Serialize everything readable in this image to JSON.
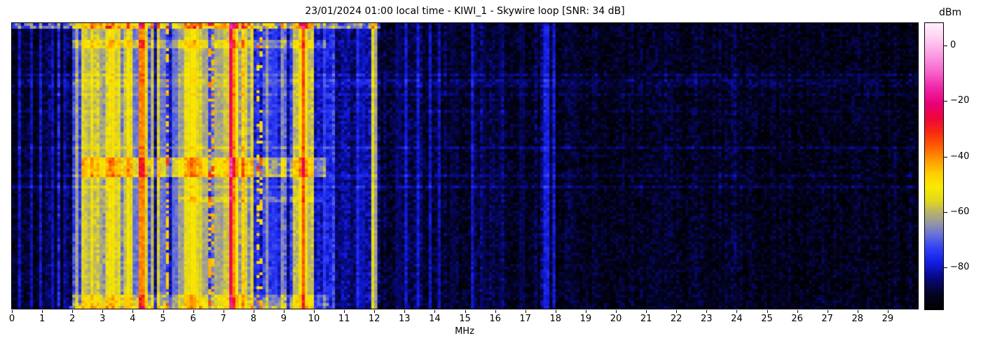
{
  "chart_data": {
    "type": "heatmap",
    "title": "23/01/2024 01:00 local time - KIWI_1 - Skywire loop [SNR: 34 dB]",
    "xlabel": "MHz",
    "x_range": [
      0,
      30
    ],
    "x_ticks": [
      0,
      1,
      2,
      3,
      4,
      5,
      6,
      7,
      8,
      9,
      10,
      11,
      12,
      13,
      14,
      15,
      16,
      17,
      18,
      19,
      20,
      21,
      22,
      23,
      24,
      25,
      26,
      27,
      28,
      29
    ],
    "y_axis": "time (no tick labels shown)",
    "colorbar": {
      "label": "dBm",
      "ticks": [
        0,
        -20,
        -40,
        -60,
        -80
      ],
      "vmin": -95,
      "vmax": 8
    },
    "colormap": [
      [
        -95,
        0,
        0,
        0
      ],
      [
        -89,
        4,
        4,
        40
      ],
      [
        -83,
        8,
        10,
        140
      ],
      [
        -78,
        20,
        30,
        230
      ],
      [
        -73,
        50,
        65,
        245
      ],
      [
        -68,
        105,
        115,
        215
      ],
      [
        -64,
        150,
        150,
        165
      ],
      [
        -60,
        185,
        180,
        105
      ],
      [
        -56,
        225,
        215,
        30
      ],
      [
        -51,
        250,
        235,
        0
      ],
      [
        -46,
        255,
        205,
        0
      ],
      [
        -41,
        255,
        150,
        0
      ],
      [
        -36,
        255,
        90,
        0
      ],
      [
        -31,
        248,
        40,
        20
      ],
      [
        -26,
        238,
        5,
        60
      ],
      [
        -21,
        232,
        0,
        120
      ],
      [
        -15,
        240,
        40,
        170
      ],
      [
        -9,
        248,
        105,
        205
      ],
      [
        -3,
        252,
        160,
        228
      ],
      [
        3,
        254,
        210,
        243
      ],
      [
        8,
        255,
        240,
        252
      ]
    ],
    "render": {
      "cols": 300,
      "rows": 102,
      "seed": 42,
      "cell_var": 4.5
    },
    "bands": [
      [
        0.0,
        2.0,
        -88,
        4,
        0.1,
        7
      ],
      [
        2.0,
        2.3,
        -76,
        6,
        0.3,
        8
      ],
      [
        2.3,
        3.45,
        -67,
        9,
        0.35,
        9
      ],
      [
        3.45,
        4.55,
        -71,
        9,
        0.3,
        9
      ],
      [
        4.55,
        5.55,
        -78,
        6,
        0.15,
        8
      ],
      [
        5.55,
        6.45,
        -68,
        9,
        0.3,
        9
      ],
      [
        6.45,
        7.05,
        -75,
        7,
        0.2,
        8
      ],
      [
        7.05,
        7.75,
        -66,
        9,
        0.3,
        8
      ],
      [
        7.75,
        8.15,
        -71,
        8,
        0.25,
        8
      ],
      [
        8.15,
        9.3,
        -78,
        6,
        0.12,
        7
      ],
      [
        9.3,
        10.05,
        -68,
        9,
        0.3,
        9
      ],
      [
        10.05,
        10.7,
        -80,
        4,
        0.1,
        5
      ],
      [
        10.7,
        11.8,
        -85,
        3,
        0.08,
        4
      ],
      [
        11.8,
        12.2,
        -83,
        3,
        0.1,
        4
      ],
      [
        12.2,
        14.5,
        -88,
        2.5,
        0.06,
        4
      ],
      [
        14.5,
        18.0,
        -89,
        2.5,
        0.05,
        3
      ],
      [
        18.0,
        24.0,
        -90,
        2,
        0.04,
        3
      ],
      [
        24.0,
        30.0,
        -91,
        2,
        0.03,
        2
      ]
    ],
    "carriers": [
      [
        0.25,
        -80,
        1
      ],
      [
        0.62,
        -79,
        1
      ],
      [
        0.95,
        -80,
        1
      ],
      [
        1.35,
        -81,
        1
      ],
      [
        1.72,
        -80,
        1
      ],
      [
        2.12,
        -60,
        1
      ],
      [
        2.38,
        -55,
        2
      ],
      [
        2.52,
        -58,
        1
      ],
      [
        2.65,
        -54,
        2
      ],
      [
        2.82,
        -58,
        1
      ],
      [
        2.95,
        -62,
        1
      ],
      [
        3.2,
        -52,
        1
      ],
      [
        3.3,
        -49,
        2
      ],
      [
        3.42,
        -55,
        1
      ],
      [
        3.58,
        -53,
        1
      ],
      [
        3.72,
        -56,
        1
      ],
      [
        3.88,
        -52,
        2
      ],
      [
        3.98,
        -57,
        1
      ],
      [
        4.1,
        -62,
        1
      ],
      [
        4.3,
        -38,
        2
      ],
      [
        4.47,
        -55,
        1
      ],
      [
        4.65,
        -60,
        1
      ],
      [
        4.85,
        -57,
        1
      ],
      [
        5.0,
        -62,
        1
      ],
      [
        5.17,
        -45,
        1,
        0.5
      ],
      [
        5.4,
        -63,
        1
      ],
      [
        5.6,
        -58,
        1
      ],
      [
        5.75,
        -55,
        1
      ],
      [
        5.88,
        -52,
        1
      ],
      [
        6.0,
        -49,
        2
      ],
      [
        6.12,
        -54,
        1
      ],
      [
        6.25,
        -57,
        1
      ],
      [
        6.4,
        -56,
        1
      ],
      [
        6.6,
        -38,
        1,
        0.35
      ],
      [
        6.8,
        -56,
        1
      ],
      [
        6.92,
        -60,
        1
      ],
      [
        7.1,
        -52,
        1
      ],
      [
        7.22,
        -22,
        1
      ],
      [
        7.32,
        -40,
        2
      ],
      [
        7.48,
        -50,
        1
      ],
      [
        7.62,
        -53,
        1
      ],
      [
        7.78,
        -55,
        1
      ],
      [
        7.95,
        -56,
        1
      ],
      [
        8.2,
        -42,
        1,
        0.3
      ],
      [
        8.47,
        -64,
        1
      ],
      [
        8.7,
        -68,
        1
      ],
      [
        8.92,
        -63,
        1
      ],
      [
        9.4,
        -55,
        1
      ],
      [
        9.52,
        -50,
        1
      ],
      [
        9.62,
        -34,
        1
      ],
      [
        9.78,
        -52,
        1
      ],
      [
        9.9,
        -54,
        1
      ],
      [
        10.35,
        -74,
        1
      ],
      [
        10.6,
        -76,
        1
      ],
      [
        11.0,
        -78,
        1
      ],
      [
        11.45,
        -77,
        1
      ],
      [
        11.6,
        -75,
        1
      ],
      [
        11.92,
        -53,
        1
      ],
      [
        12.03,
        -62,
        1
      ],
      [
        12.8,
        -80,
        1
      ],
      [
        13.05,
        -79,
        1
      ],
      [
        13.42,
        -77,
        1
      ],
      [
        13.82,
        -78,
        1
      ],
      [
        14.12,
        -79,
        1
      ],
      [
        14.6,
        -82,
        1
      ],
      [
        15.25,
        -80,
        1
      ],
      [
        15.6,
        -81,
        1
      ],
      [
        16.2,
        -82,
        1
      ],
      [
        16.9,
        -81,
        1
      ],
      [
        17.7,
        -72,
        1
      ],
      [
        17.95,
        -79,
        1
      ],
      [
        18.6,
        -84,
        1
      ],
      [
        19.3,
        -85,
        1
      ],
      [
        21.5,
        -85,
        1
      ],
      [
        23.0,
        -86,
        1
      ]
    ],
    "hazes": [
      [
        0.0,
        0.012,
        0.0,
        12.2,
        16,
        10
      ],
      [
        0.055,
        0.085,
        2.0,
        10.4,
        8,
        3
      ],
      [
        0.47,
        0.53,
        2.3,
        10.4,
        12,
        3
      ],
      [
        0.6,
        0.625,
        5.5,
        10.3,
        6,
        3
      ],
      [
        0.945,
        0.99,
        2.0,
        10.5,
        8,
        4
      ],
      [
        0.988,
        1.0,
        1.9,
        10.5,
        12,
        6
      ]
    ],
    "streaks": {
      "p": 0.085,
      "min": 2,
      "max": 5.5
    }
  }
}
